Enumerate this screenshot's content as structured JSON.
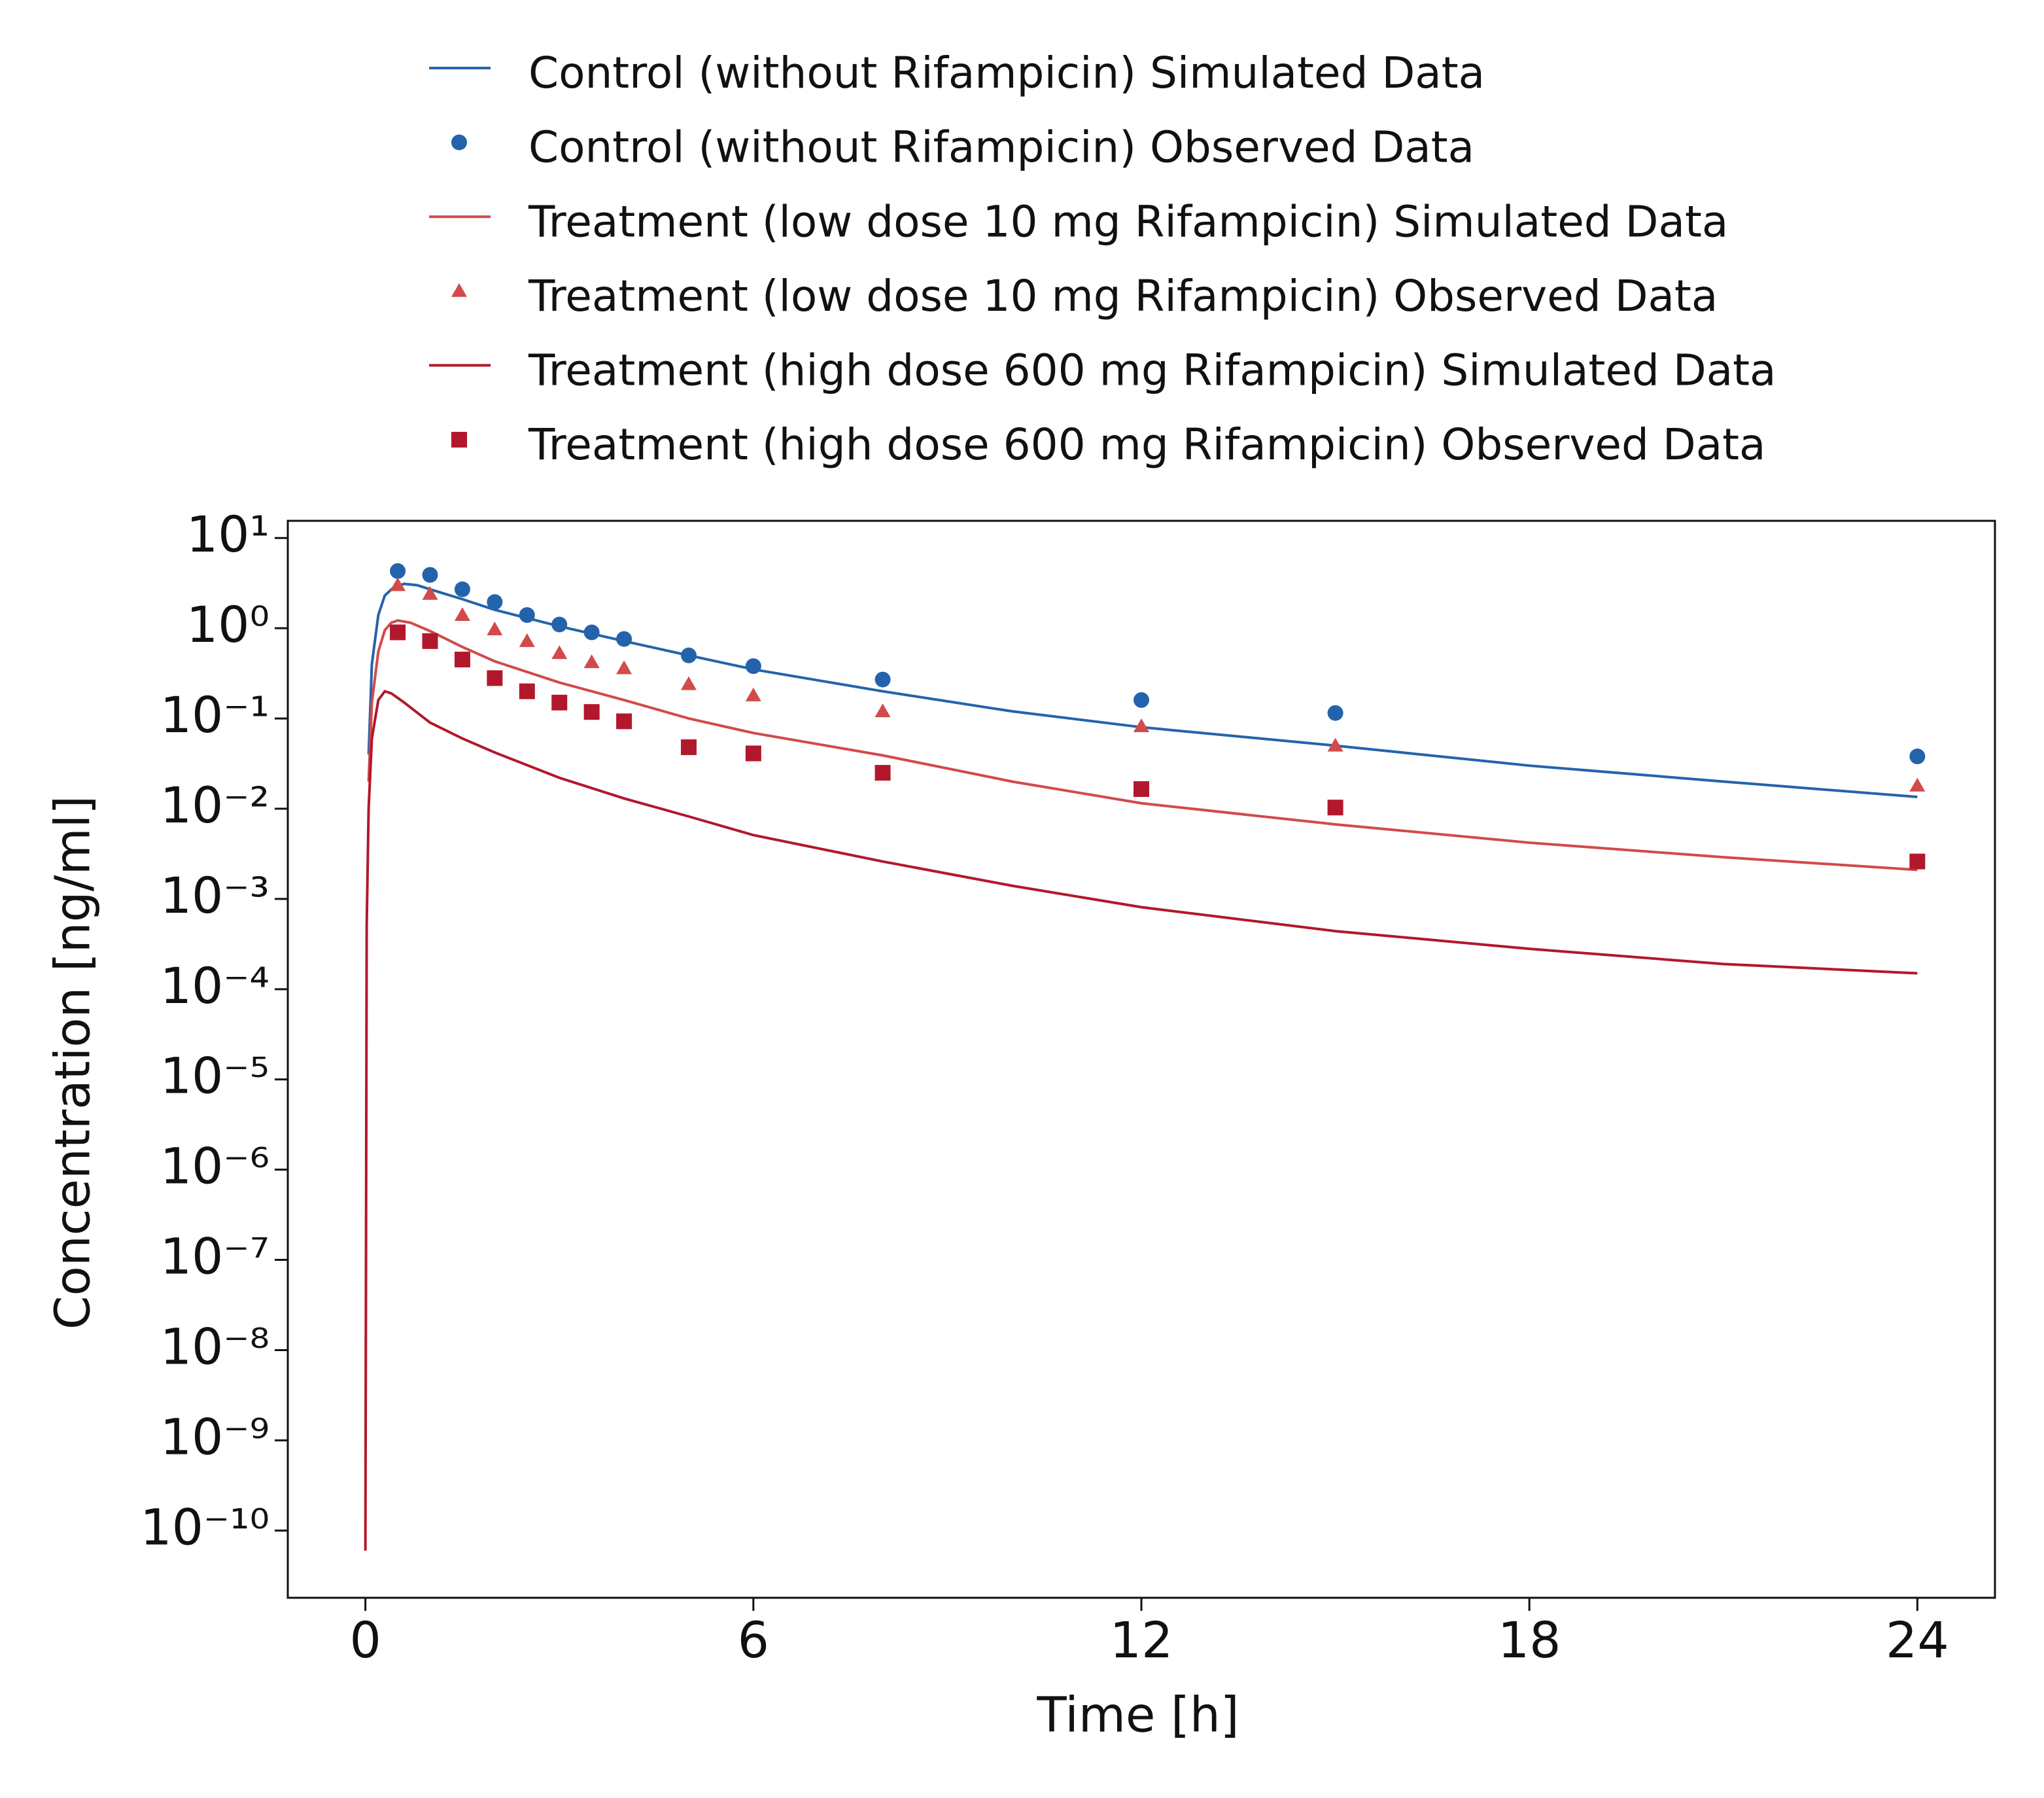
{
  "chart_data": {
    "type": "line",
    "xlabel": "Time [h]",
    "ylabel": "Concentration [ng/ml]",
    "xlim": [
      -1.2,
      25.2
    ],
    "xticks": [
      0,
      6,
      12,
      18,
      24
    ],
    "ylim": [
      1.8e-11,
      15.5
    ],
    "log_y": true,
    "yticks": [
      {
        "value": 10,
        "label": "10¹"
      },
      {
        "value": 1,
        "label": "10⁰"
      },
      {
        "value": 0.1,
        "label": "10⁻¹"
      },
      {
        "value": 0.01,
        "label": "10⁻²"
      },
      {
        "value": 0.001,
        "label": "10⁻³"
      },
      {
        "value": 0.0001,
        "label": "10⁻⁴"
      },
      {
        "value": 1e-05,
        "label": "10⁻⁵"
      },
      {
        "value": 1e-06,
        "label": "10⁻⁶"
      },
      {
        "value": 1e-07,
        "label": "10⁻⁷"
      },
      {
        "value": 1e-08,
        "label": "10⁻⁸"
      },
      {
        "value": 1e-09,
        "label": "10⁻⁹"
      },
      {
        "value": 1e-10,
        "label": "10⁻¹⁰"
      }
    ],
    "legend": "top",
    "series": [
      {
        "name": "Control (without Rifampicin) Simulated Data",
        "color": "#2463ab",
        "marker": "line",
        "x": [
          0.05,
          0.1,
          0.2,
          0.3,
          0.45,
          0.6,
          0.8,
          1,
          1.5,
          2,
          3,
          4,
          5,
          6,
          8,
          10,
          12,
          15,
          18,
          21,
          24
        ],
        "values": [
          0.04,
          0.4,
          1.4,
          2.3,
          2.9,
          3.1,
          3.0,
          2.7,
          2.1,
          1.6,
          1.05,
          0.72,
          0.5,
          0.35,
          0.2,
          0.12,
          0.08,
          0.05,
          0.03,
          0.02,
          0.0135
        ]
      },
      {
        "name": "Control (without Rifampicin) Observed Data",
        "color": "#2463ab",
        "marker": "circle",
        "x": [
          0.5,
          1,
          1.5,
          2,
          2.5,
          3,
          3.5,
          4,
          5,
          6,
          8,
          12,
          15,
          24
        ],
        "values": [
          4.3,
          3.9,
          2.7,
          1.95,
          1.4,
          1.1,
          0.9,
          0.76,
          0.5,
          0.38,
          0.27,
          0.16,
          0.115,
          0.038
        ]
      },
      {
        "name": "Treatment (low dose 10 mg Rifampicin) Simulated Data",
        "color": "#d24a4a",
        "marker": "line",
        "x": [
          0.05,
          0.1,
          0.2,
          0.3,
          0.4,
          0.5,
          0.7,
          1,
          1.5,
          2,
          3,
          4,
          5,
          6,
          8,
          10,
          12,
          15,
          18,
          21,
          24
        ],
        "values": [
          0.02,
          0.15,
          0.55,
          0.95,
          1.15,
          1.22,
          1.15,
          0.93,
          0.62,
          0.43,
          0.25,
          0.16,
          0.1,
          0.069,
          0.039,
          0.02,
          0.0115,
          0.0067,
          0.0042,
          0.0029,
          0.0021
        ]
      },
      {
        "name": "Treatment (low dose 10 mg Rifampicin) Observed Data",
        "color": "#d24a4a",
        "marker": "triangle",
        "x": [
          0.5,
          1,
          1.5,
          2,
          2.5,
          3,
          3.5,
          4,
          5,
          6,
          8,
          12,
          15,
          24
        ],
        "values": [
          3.0,
          2.4,
          1.4,
          0.97,
          0.72,
          0.53,
          0.42,
          0.36,
          0.24,
          0.18,
          0.12,
          0.082,
          0.05,
          0.018
        ]
      },
      {
        "name": "Treatment (high dose 600 mg Rifampicin) Simulated Data",
        "color": "#b2182b",
        "marker": "line",
        "x": [
          0,
          0.02,
          0.05,
          0.1,
          0.2,
          0.3,
          0.4,
          0.6,
          1,
          1.5,
          2,
          3,
          4,
          5,
          6,
          8,
          10,
          12,
          15,
          18,
          21,
          24
        ],
        "values": [
          6e-11,
          0.0005,
          0.01,
          0.06,
          0.16,
          0.2,
          0.19,
          0.15,
          0.09,
          0.06,
          0.042,
          0.022,
          0.013,
          0.0082,
          0.0051,
          0.0026,
          0.0014,
          0.00081,
          0.00044,
          0.00028,
          0.00019,
          0.00015
        ]
      },
      {
        "name": "Treatment (high dose 600 mg Rifampicin) Observed Data",
        "color": "#b2182b",
        "marker": "square",
        "x": [
          0.5,
          1,
          1.5,
          2,
          2.5,
          3,
          3.5,
          4,
          5,
          6,
          8,
          12,
          15,
          24
        ],
        "values": [
          0.9,
          0.72,
          0.45,
          0.28,
          0.2,
          0.15,
          0.118,
          0.093,
          0.048,
          0.041,
          0.025,
          0.0165,
          0.0103,
          0.0026
        ]
      }
    ]
  }
}
